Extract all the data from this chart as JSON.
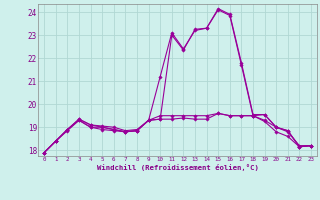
{
  "xlabel": "Windchill (Refroidissement éolien,°C)",
  "background_color": "#cff0ec",
  "grid_color": "#b0d8d4",
  "line_color": "#990099",
  "xlim": [
    -0.5,
    23.5
  ],
  "ylim": [
    17.75,
    24.35
  ],
  "yticks": [
    18,
    19,
    20,
    21,
    22,
    23,
    24
  ],
  "xticks": [
    0,
    1,
    2,
    3,
    4,
    5,
    6,
    7,
    8,
    9,
    10,
    11,
    12,
    13,
    14,
    15,
    16,
    17,
    18,
    19,
    20,
    21,
    22,
    23
  ],
  "series": [
    [
      17.9,
      18.4,
      18.9,
      19.3,
      19.0,
      19.0,
      18.9,
      18.8,
      18.85,
      19.3,
      19.5,
      19.5,
      19.5,
      19.5,
      19.5,
      19.6,
      19.5,
      19.5,
      19.5,
      19.3,
      19.0,
      18.8,
      18.2,
      18.2
    ],
    [
      17.9,
      18.4,
      18.85,
      19.3,
      19.0,
      18.9,
      18.85,
      18.8,
      18.85,
      19.3,
      19.35,
      19.35,
      19.4,
      19.35,
      19.35,
      19.6,
      19.5,
      19.5,
      19.5,
      19.25,
      18.8,
      18.6,
      18.15,
      18.2
    ],
    [
      17.9,
      18.4,
      18.9,
      19.35,
      19.1,
      19.05,
      19.0,
      18.85,
      18.9,
      19.3,
      21.2,
      23.1,
      22.4,
      23.2,
      23.3,
      24.1,
      23.85,
      21.7,
      19.5,
      19.55,
      19.0,
      18.85,
      18.15,
      18.2
    ],
    [
      17.9,
      18.4,
      18.9,
      19.35,
      19.1,
      19.0,
      18.9,
      18.8,
      18.85,
      19.3,
      19.35,
      23.0,
      22.35,
      23.25,
      23.3,
      24.15,
      23.9,
      21.8,
      19.55,
      19.55,
      19.0,
      18.85,
      18.15,
      18.2
    ]
  ]
}
